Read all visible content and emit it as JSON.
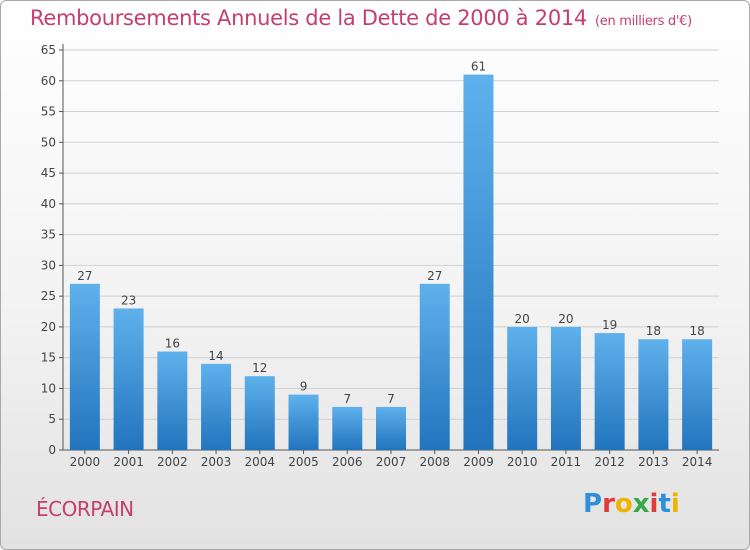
{
  "title": "Remboursements Annuels de la Dette de 2000 à 2014",
  "unit": "(en milliers d'€)",
  "commune": "ÉCORPAIN",
  "logo": {
    "letters": [
      "P",
      "r",
      "o",
      "x",
      "i",
      "t",
      "i"
    ],
    "colors": [
      "#2f8fd8",
      "#e03a3a",
      "#f0b400",
      "#39a84a",
      "#e03a3a",
      "#2f8fd8",
      "#f0b400"
    ]
  },
  "colors": {
    "title": "#c43f6b",
    "bar_light": "#5fb1ec",
    "bar_dark": "#2274bd",
    "grid": "#d0d0d0",
    "axis": "#555555"
  },
  "chart_data": {
    "type": "bar",
    "categories": [
      "2000",
      "2001",
      "2002",
      "2003",
      "2004",
      "2005",
      "2006",
      "2007",
      "2008",
      "2009",
      "2010",
      "2011",
      "2012",
      "2013",
      "2014"
    ],
    "values": [
      27,
      23,
      16,
      14,
      12,
      9,
      7,
      7,
      27,
      61,
      20,
      20,
      19,
      18,
      18
    ],
    "ylim": [
      0,
      65
    ],
    "yticks": [
      0,
      5,
      10,
      15,
      20,
      25,
      30,
      35,
      40,
      45,
      50,
      55,
      60,
      65
    ],
    "grid": true,
    "data_labels": true
  }
}
